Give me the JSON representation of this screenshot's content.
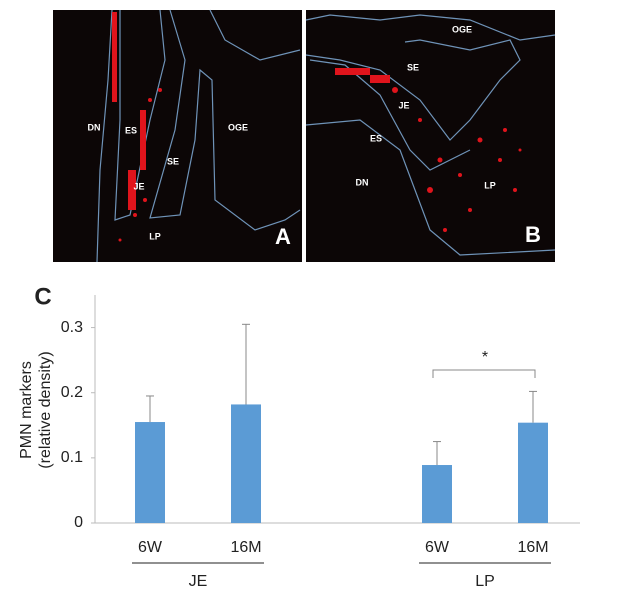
{
  "panels": [
    {
      "label": "A",
      "regions": [
        "DN",
        "ES",
        "SE",
        "OGE",
        "JE",
        "LP"
      ]
    },
    {
      "label": "B",
      "regions": [
        "OGE",
        "SE",
        "JE",
        "ES",
        "DN",
        "LP"
      ]
    }
  ],
  "chart_data": {
    "type": "bar",
    "panel_label": "C",
    "ylabel": [
      "PMN markers",
      "(relative density)"
    ],
    "categories": [
      "6W",
      "16M",
      "6W",
      "16M"
    ],
    "groups": [
      {
        "name": "JE",
        "members": [
          0,
          1
        ]
      },
      {
        "name": "LP",
        "members": [
          2,
          3
        ]
      }
    ],
    "values": [
      0.155,
      0.182,
      0.089,
      0.154
    ],
    "errors": [
      0.04,
      0.123,
      0.036,
      0.048
    ],
    "color": "#5b9bd5",
    "ylim": [
      0,
      0.35
    ],
    "yticks": [
      0,
      0.1,
      0.2,
      0.3
    ],
    "significance": {
      "between": [
        2,
        3
      ],
      "label": "*"
    }
  }
}
